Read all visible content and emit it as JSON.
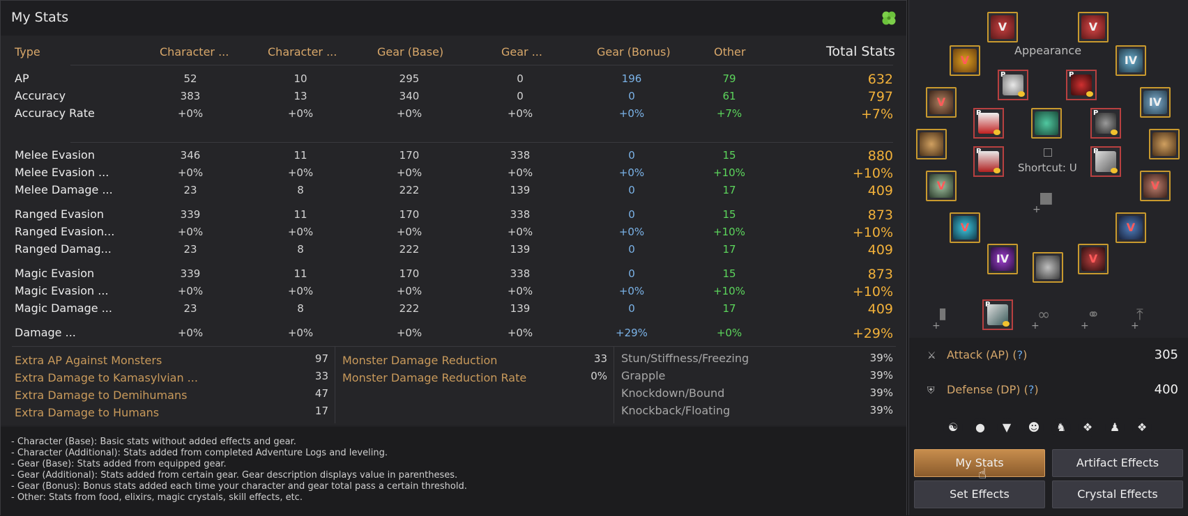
{
  "window": {
    "title": "My Stats"
  },
  "columns": {
    "type": "Type",
    "char_base": "Character ...",
    "char_add": "Character ...",
    "gear_base": "Gear (Base)",
    "gear_add": "Gear ...",
    "gear_bonus": "Gear (Bonus)",
    "other": "Other",
    "total": "Total Stats"
  },
  "rows": [
    {
      "type": "AP",
      "cb": "52",
      "ca": "10",
      "gb": "295",
      "ga": "0",
      "bonus": "196",
      "other": "79",
      "total": "632"
    },
    {
      "type": "Accuracy",
      "cb": "383",
      "ca": "13",
      "gb": "340",
      "ga": "0",
      "bonus": "0",
      "other": "61",
      "total": "797"
    },
    {
      "type": "Accuracy Rate",
      "cb": "+0%",
      "ca": "+0%",
      "gb": "+0%",
      "ga": "+0%",
      "bonus": "+0%",
      "other": "+7%",
      "total": "+7%"
    },
    {
      "type": "Melee Evasion",
      "cb": "346",
      "ca": "11",
      "gb": "170",
      "ga": "338",
      "bonus": "0",
      "other": "15",
      "total": "880"
    },
    {
      "type": "Melee Evasion ...",
      "cb": "+0%",
      "ca": "+0%",
      "gb": "+0%",
      "ga": "+0%",
      "bonus": "+0%",
      "other": "+10%",
      "total": "+10%"
    },
    {
      "type": "Melee Damage ...",
      "cb": "23",
      "ca": "8",
      "gb": "222",
      "ga": "139",
      "bonus": "0",
      "other": "17",
      "total": "409"
    },
    {
      "type": "Ranged Evasion",
      "cb": "339",
      "ca": "11",
      "gb": "170",
      "ga": "338",
      "bonus": "0",
      "other": "15",
      "total": "873"
    },
    {
      "type": "Ranged Evasion...",
      "cb": "+0%",
      "ca": "+0%",
      "gb": "+0%",
      "ga": "+0%",
      "bonus": "+0%",
      "other": "+10%",
      "total": "+10%"
    },
    {
      "type": "Ranged Damag...",
      "cb": "23",
      "ca": "8",
      "gb": "222",
      "ga": "139",
      "bonus": "0",
      "other": "17",
      "total": "409"
    },
    {
      "type": "Magic Evasion",
      "cb": "339",
      "ca": "11",
      "gb": "170",
      "ga": "338",
      "bonus": "0",
      "other": "15",
      "total": "873"
    },
    {
      "type": "Magic Evasion ...",
      "cb": "+0%",
      "ca": "+0%",
      "gb": "+0%",
      "ga": "+0%",
      "bonus": "+0%",
      "other": "+10%",
      "total": "+10%"
    },
    {
      "type": "Magic Damage ...",
      "cb": "23",
      "ca": "8",
      "gb": "222",
      "ga": "139",
      "bonus": "0",
      "other": "17",
      "total": "409"
    },
    {
      "type": "Damage ...",
      "cb": "+0%",
      "ca": "+0%",
      "gb": "+0%",
      "ga": "+0%",
      "bonus": "+29%",
      "other": "+0%",
      "total": "+29%"
    }
  ],
  "extra_col1": [
    {
      "label": "Extra AP Against Monsters",
      "value": "97"
    },
    {
      "label": "Extra Damage to Kamasylvian ...",
      "value": "33"
    },
    {
      "label": "Extra Damage to Demihumans",
      "value": "47"
    },
    {
      "label": "Extra Damage to Humans",
      "value": "17"
    }
  ],
  "extra_col2": [
    {
      "label": "Monster Damage Reduction",
      "value": "33"
    },
    {
      "label": "Monster Damage Reduction Rate",
      "value": "0%"
    }
  ],
  "extra_col3": [
    {
      "label": "Stun/Stiffness/Freezing",
      "value": "39%"
    },
    {
      "label": "Grapple",
      "value": "39%"
    },
    {
      "label": "Knockdown/Bound",
      "value": "39%"
    },
    {
      "label": "Knockback/Floating",
      "value": "39%"
    }
  ],
  "notes": [
    "- Character (Base): Basic stats without added effects and gear.",
    "- Character (Additional): Stats added from completed Adventure Logs and leveling.",
    "- Gear (Base): Stats added from equipped gear.",
    "- Gear (Additional): Stats added from certain gear. Gear description displays value in parentheses.",
    "- Gear (Bonus): Bonus stats added each time your character and gear total pass a certain threshold.",
    "- Other: Stats from food, elixirs, magic crystals, skill effects, etc."
  ],
  "equipment": {
    "appearance_label": "Appearance",
    "shortcut_label": "Shortcut: U",
    "attack_label": "Attack (AP) (",
    "attack_q": "?",
    "attack_close": ")",
    "attack_value": "305",
    "defense_label": "Defense (DP) (",
    "defense_q": "?",
    "defense_close": ")",
    "defense_value": "400"
  },
  "buttons": {
    "my_stats": "My Stats",
    "artifact_effects": "Artifact Effects",
    "set_effects": "Set Effects",
    "crystal_effects": "Crystal Effects"
  },
  "slot_labels": {
    "v": "V",
    "iv": "IV",
    "p": "P"
  },
  "colors": {
    "accent_gold": "#f2b13a",
    "header_tan": "#d9a86a",
    "bonus_blue": "#7bb3e8",
    "other_green": "#5cd65c"
  }
}
